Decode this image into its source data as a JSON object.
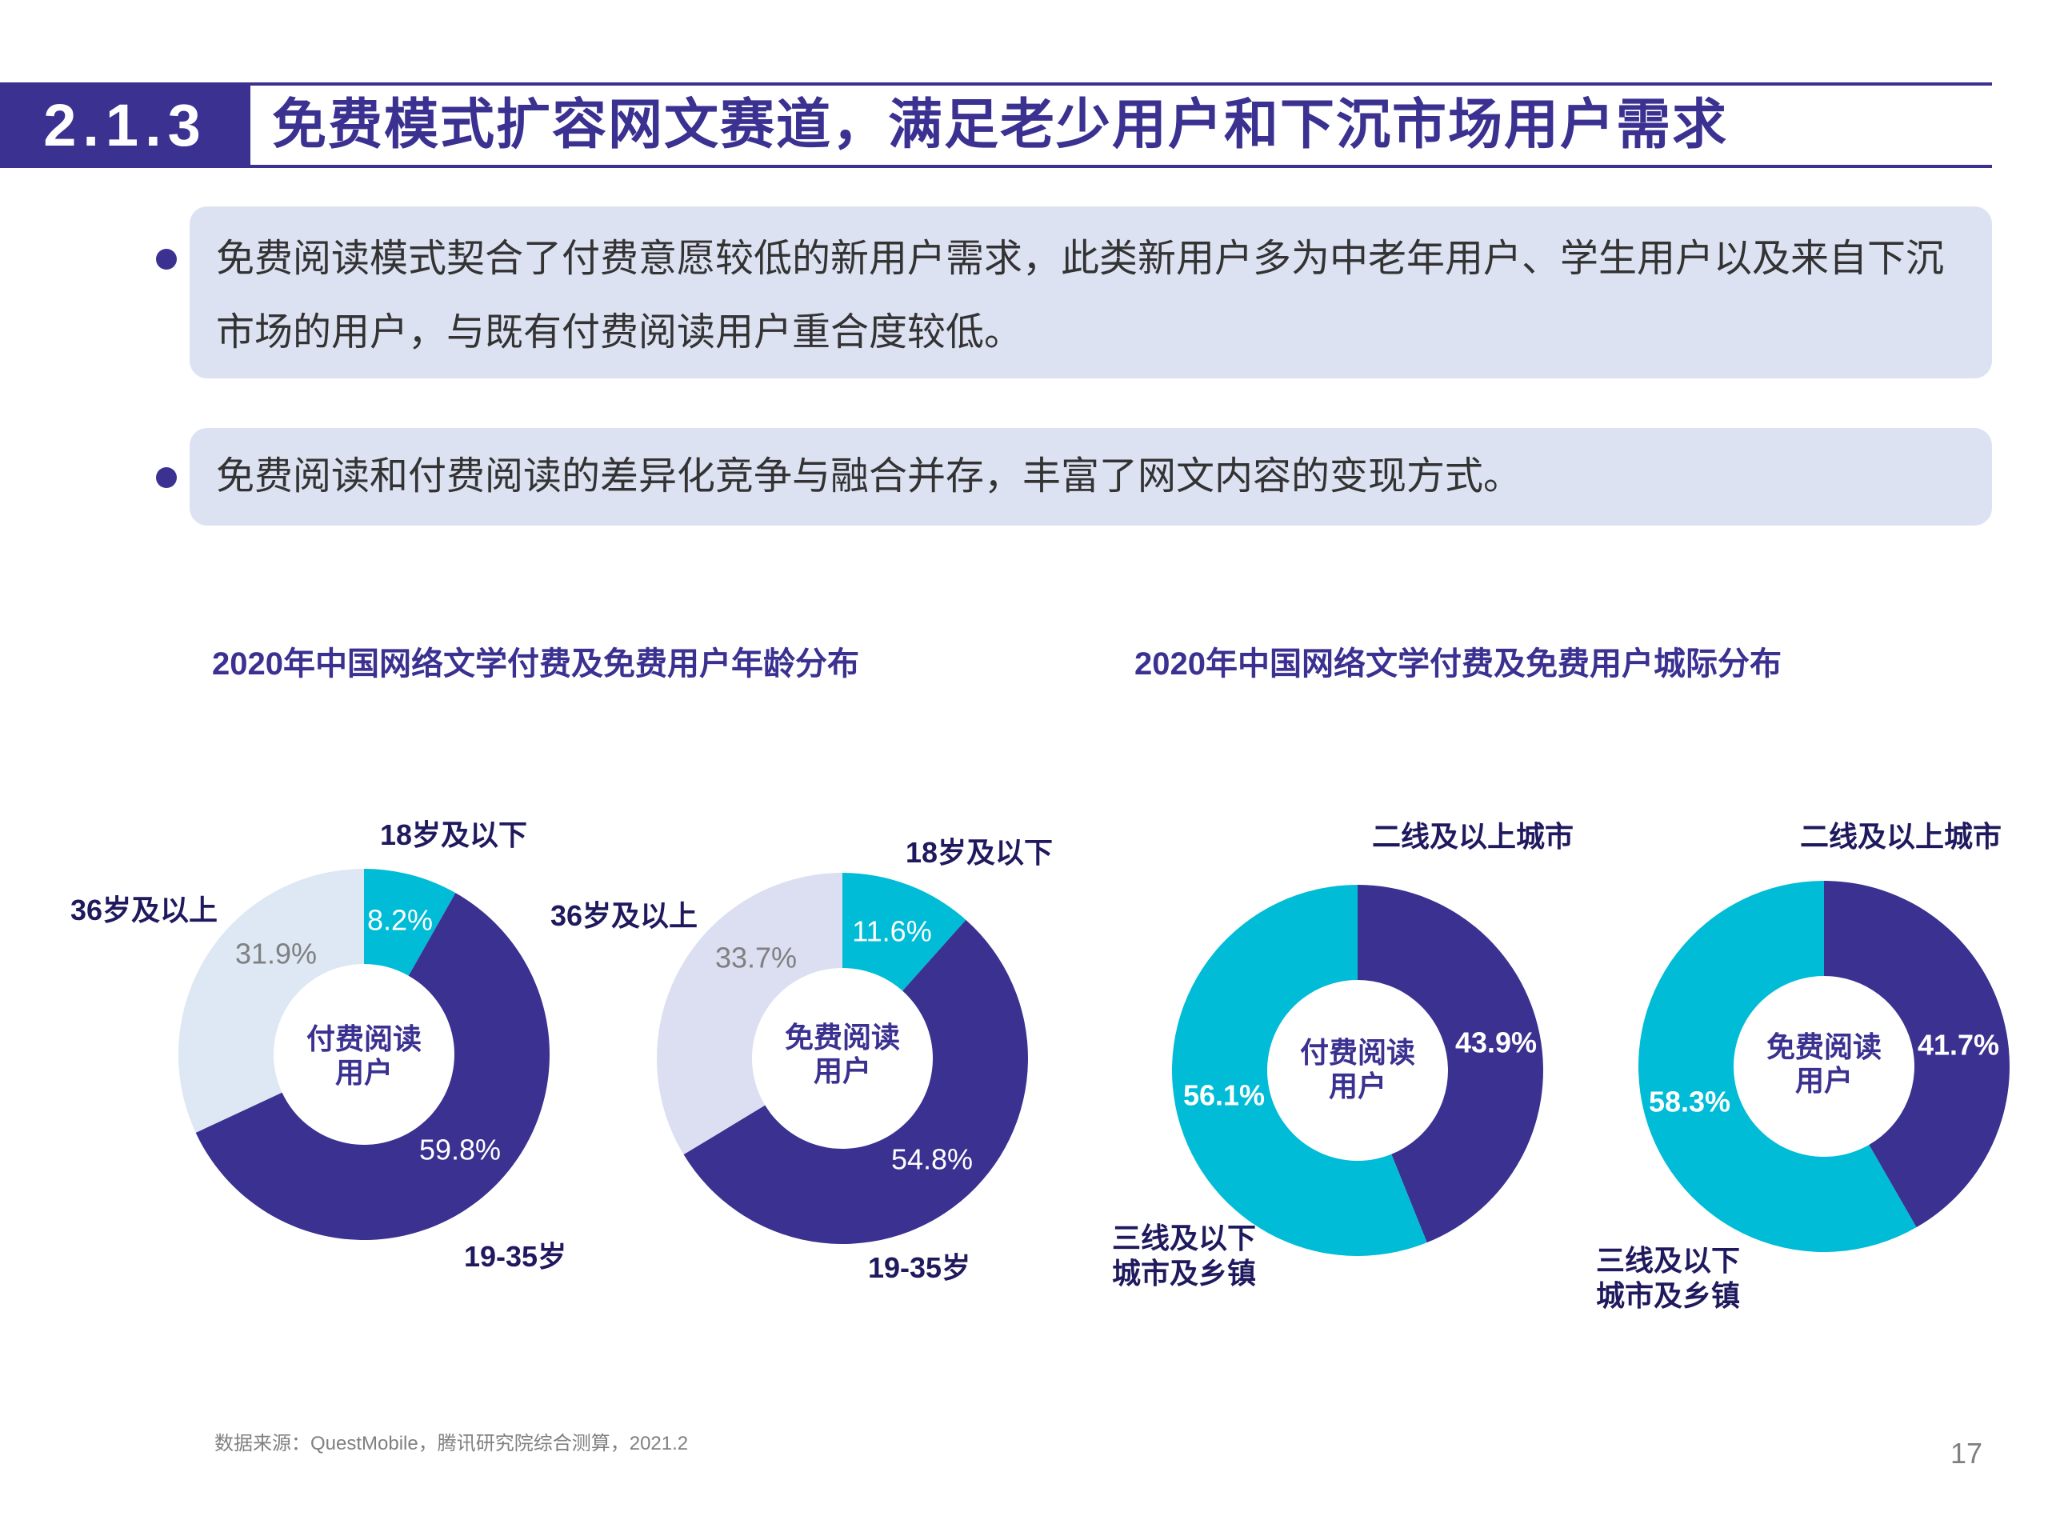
{
  "header": {
    "section_number": "2.1.3",
    "title": "免费模式扩容网文赛道，满足老少用户和下沉市场用户需求"
  },
  "bullets": [
    {
      "text": "免费阅读模式契合了付费意愿较低的新用户需求，此类新用户多为中老年用户、学生用户以及来自下沉市场的用户，与既有付费阅读用户重合度较低。"
    },
    {
      "text": "免费阅读和付费阅读的差异化竞争与融合并存，丰富了网文内容的变现方式。"
    }
  ],
  "chart_titles": {
    "age": "2020年中国网络文学付费及免费用户年龄分布",
    "city": "2020年中国网络文学付费及免费用户城际分布"
  },
  "colors": {
    "navy": "#3a3191",
    "cyan": "#00bcd6",
    "pale_blue": "#dde8f4",
    "pale_lavender": "#dcdff2"
  },
  "chart_data": [
    {
      "type": "pie",
      "group": "age",
      "center_label": [
        "付费阅读",
        "用户"
      ],
      "slices": [
        {
          "label": "18岁及以下",
          "value": 8.2,
          "display": "8.2%",
          "color": "#00bcd6",
          "value_color": "#ffffff"
        },
        {
          "label": "19-35岁",
          "value": 59.8,
          "display": "59.8%",
          "color": "#3a3191",
          "value_color": "#ffffff"
        },
        {
          "label": "36岁及以上",
          "value": 31.9,
          "display": "31.9%",
          "color": "#dde8f4",
          "value_color": "#808080"
        }
      ]
    },
    {
      "type": "pie",
      "group": "age",
      "center_label": [
        "免费阅读",
        "用户"
      ],
      "slices": [
        {
          "label": "18岁及以下",
          "value": 11.6,
          "display": "11.6%",
          "color": "#00bcd6",
          "value_color": "#ffffff"
        },
        {
          "label": "19-35岁",
          "value": 54.8,
          "display": "54.8%",
          "color": "#3a3191",
          "value_color": "#ffffff"
        },
        {
          "label": "36岁及以上",
          "value": 33.7,
          "display": "33.7%",
          "color": "#dcdff2",
          "value_color": "#808080"
        }
      ]
    },
    {
      "type": "pie",
      "group": "city",
      "center_label": [
        "付费阅读",
        "用户"
      ],
      "slices": [
        {
          "label": "二线及以上城市",
          "value": 43.9,
          "display": "43.9%",
          "color": "#3a3191",
          "value_color": "#ffffff"
        },
        {
          "label": "三线及以下城市及乡镇",
          "label_lines": [
            "三线及以下",
            "城市及乡镇"
          ],
          "value": 56.1,
          "display": "56.1%",
          "color": "#00bcd6",
          "value_color": "#ffffff"
        }
      ]
    },
    {
      "type": "pie",
      "group": "city",
      "center_label": [
        "免费阅读",
        "用户"
      ],
      "slices": [
        {
          "label": "二线及以上城市",
          "value": 41.7,
          "display": "41.7%",
          "color": "#3a3191",
          "value_color": "#ffffff"
        },
        {
          "label": "三线及以下城市及乡镇",
          "label_lines": [
            "三线及以下",
            "城市及乡镇"
          ],
          "value": 58.3,
          "display": "58.3%",
          "color": "#00bcd6",
          "value_color": "#ffffff"
        }
      ]
    }
  ],
  "footer": {
    "source": "数据来源：QuestMobile，腾讯研究院综合测算，2021.2",
    "page_number": "17"
  }
}
